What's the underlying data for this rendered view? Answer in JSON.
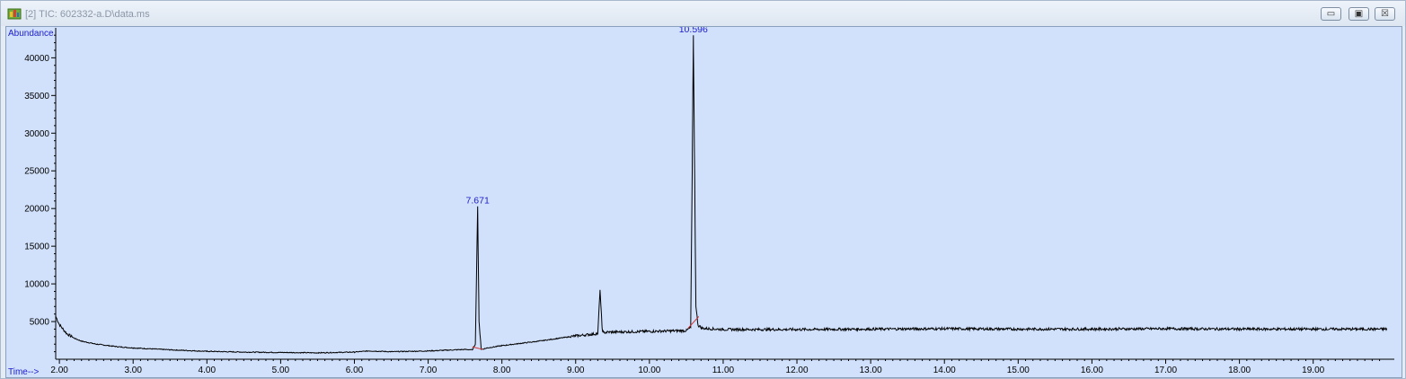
{
  "window": {
    "title": "[2] TIC: 602332-a.D\\data.ms",
    "buttons": {
      "minimize": "▭",
      "restore": "▣",
      "close": "☒"
    }
  },
  "chart_data": {
    "type": "line",
    "ylabel": "Abundance",
    "xlabel": "Time-->",
    "xlim": [
      1.95,
      20.1
    ],
    "ylim": [
      0,
      43500
    ],
    "x_ticks": [
      "2.00",
      "3.00",
      "4.00",
      "5.00",
      "6.00",
      "7.00",
      "8.00",
      "9.00",
      "10.00",
      "11.00",
      "12.00",
      "13.00",
      "14.00",
      "15.00",
      "16.00",
      "17.00",
      "18.00",
      "19.00"
    ],
    "y_ticks": [
      "5000",
      "10000",
      "15000",
      "20000",
      "25000",
      "30000",
      "35000",
      "40000"
    ],
    "peak_labels": [
      {
        "time": 7.671,
        "label": "7.671",
        "abundance": 20300
      },
      {
        "time": 10.596,
        "label": "10.596",
        "abundance": 43000
      }
    ],
    "series": [
      {
        "x": [
          1.95,
          2.0,
          2.1,
          2.2,
          2.3,
          2.5,
          2.8,
          3.0,
          3.5,
          4.0,
          4.5,
          5.0,
          5.5,
          6.0,
          6.2,
          6.5,
          7.0,
          7.5,
          7.6,
          7.64,
          7.671,
          7.69,
          7.72,
          7.8,
          8.0,
          8.5,
          9.0,
          9.3,
          9.33,
          9.36,
          9.38,
          9.42,
          9.5,
          10.0,
          10.5,
          10.56,
          10.58,
          10.596,
          10.61,
          10.63,
          10.66,
          10.72,
          11.0,
          12.0,
          13.0,
          14.0,
          15.0,
          16.0,
          17.0,
          18.0,
          19.0,
          20.0
        ],
        "y": [
          5700,
          4600,
          3400,
          2800,
          2400,
          2000,
          1650,
          1500,
          1250,
          1050,
          950,
          900,
          850,
          950,
          1100,
          1000,
          1100,
          1300,
          1250,
          2000,
          20300,
          5000,
          1300,
          1500,
          1800,
          2400,
          3100,
          3400,
          9200,
          4000,
          3500,
          3600,
          3600,
          3700,
          3800,
          4200,
          25000,
          43000,
          28000,
          7000,
          4500,
          4100,
          3950,
          3950,
          4000,
          4050,
          4000,
          4000,
          4050,
          4000,
          4000,
          4000
        ]
      }
    ]
  }
}
